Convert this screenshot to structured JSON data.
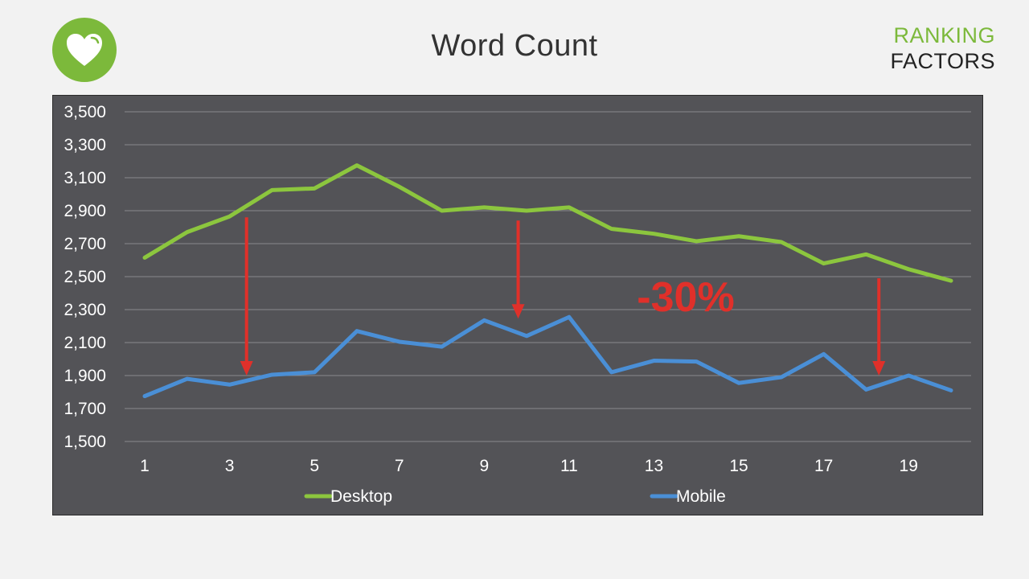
{
  "header": {
    "title": "Word Count",
    "brand_line1": "RANKING",
    "brand_line2": "FACTORS",
    "logo_icon": "heart-icon"
  },
  "colors": {
    "background": "#f2f2f2",
    "panel": "#535357",
    "desktop": "#8cc63e",
    "mobile": "#4a8fd6",
    "arrow": "#e0302a",
    "brand_green": "#7cb93b"
  },
  "chart_data": {
    "type": "line",
    "x": [
      1,
      2,
      3,
      4,
      5,
      6,
      7,
      8,
      9,
      10,
      11,
      12,
      13,
      14,
      15,
      16,
      17,
      18,
      19,
      20
    ],
    "x_tick_labels": [
      "1",
      "3",
      "5",
      "7",
      "9",
      "11",
      "13",
      "15",
      "17",
      "19"
    ],
    "x_tick_values": [
      1,
      3,
      5,
      7,
      9,
      11,
      13,
      15,
      17,
      19
    ],
    "y_tick_labels": [
      "3,500",
      "3,300",
      "3,100",
      "2,900",
      "2,700",
      "2,500",
      "2,300",
      "2,100",
      "1,900",
      "1,700",
      "1,500"
    ],
    "y_tick_values": [
      3500,
      3300,
      3100,
      2900,
      2700,
      2500,
      2300,
      2100,
      1900,
      1700,
      1500
    ],
    "ylim": [
      1500,
      3500
    ],
    "xlim": [
      1,
      20
    ],
    "grid": true,
    "legend_position": "bottom",
    "series": [
      {
        "name": "Desktop",
        "color": "#8cc63e",
        "values": [
          2615,
          2770,
          2865,
          3025,
          3035,
          3175,
          3045,
          2900,
          2920,
          2900,
          2920,
          2790,
          2760,
          2715,
          2745,
          2710,
          2580,
          2635,
          2545,
          2475
        ]
      },
      {
        "name": "Mobile",
        "color": "#4a8fd6",
        "values": [
          1775,
          1880,
          1845,
          1905,
          1920,
          2170,
          2105,
          2075,
          2235,
          2140,
          2255,
          1920,
          1990,
          1985,
          1855,
          1890,
          2030,
          1815,
          1900,
          1810
        ]
      }
    ],
    "annotations": [
      {
        "text": "-30%",
        "color": "#e0302a"
      }
    ],
    "arrows": [
      {
        "x": 3.4,
        "y_from": 2860,
        "y_to": 1910
      },
      {
        "x": 9.8,
        "y_from": 2840,
        "y_to": 2255
      },
      {
        "x": 18.3,
        "y_from": 2490,
        "y_to": 1910
      }
    ]
  }
}
